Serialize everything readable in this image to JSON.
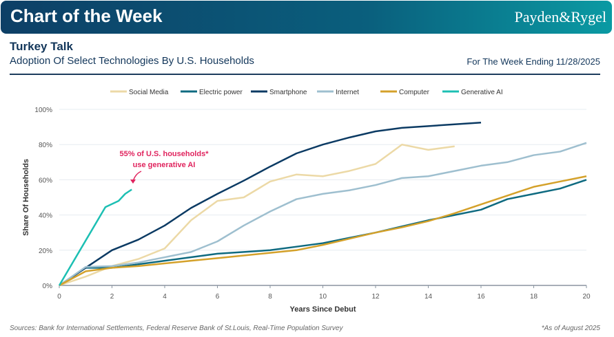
{
  "header": {
    "banner_title": "Chart of the Week",
    "logo": "Payden&Rygel",
    "title": "Turkey Talk",
    "subtitle": "Adoption Of Select Technologies By U.S. Households",
    "week": "For The Week Ending 11/28/2025"
  },
  "footer": {
    "sources": "Sources: Bank for International Settlements, Federal Reserve Bank of St.Louis, Real-Time Population Survey",
    "note": "*As of August 2025"
  },
  "chart_data": {
    "type": "line",
    "title": "",
    "xlabel": "Years Since Debut",
    "ylabel": "Share Of Households",
    "xlim": [
      0,
      20
    ],
    "ylim": [
      0,
      100
    ],
    "xticks": [
      0,
      2,
      4,
      6,
      8,
      10,
      12,
      14,
      16,
      18,
      20
    ],
    "yticks": [
      "0%",
      "20%",
      "40%",
      "60%",
      "80%",
      "100%"
    ],
    "grid": "horizontal",
    "legend": "top",
    "annotation": {
      "line1": "55% of U.S. households*",
      "line2": "use generative AI",
      "color": "#e0245e"
    },
    "series": [
      {
        "name": "Social Media",
        "color": "#ecd9a6",
        "x": [
          0,
          1,
          2,
          3,
          4,
          5,
          6,
          7,
          8,
          9,
          10,
          11,
          12,
          13,
          14,
          15
        ],
        "y": [
          0,
          5,
          11,
          15,
          21,
          37,
          48,
          50,
          59,
          63,
          62,
          65,
          69,
          80,
          77,
          79
        ]
      },
      {
        "name": "Electric power",
        "color": "#0e6a80",
        "x": [
          0,
          1,
          2,
          3,
          4,
          5,
          6,
          7,
          8,
          9,
          10,
          11,
          12,
          13,
          14,
          15,
          16,
          17,
          18,
          19,
          20
        ],
        "y": [
          0,
          10,
          10,
          12,
          14,
          16,
          18,
          19,
          20,
          22,
          24,
          27,
          30,
          33.5,
          37,
          40,
          43,
          49,
          52,
          55,
          60
        ]
      },
      {
        "name": "Smartphone",
        "color": "#0b3a63",
        "x": [
          0,
          1,
          2,
          3,
          4,
          5,
          6,
          7,
          8,
          9,
          10,
          11,
          12,
          13,
          14,
          15,
          16
        ],
        "y": [
          0,
          10,
          20,
          26,
          34,
          44,
          52,
          59.5,
          67.5,
          75,
          80,
          84,
          87.5,
          89.5,
          90.5,
          91.5,
          92.5
        ]
      },
      {
        "name": "Internet",
        "color": "#9ebfcf",
        "x": [
          0,
          1,
          2,
          3,
          4,
          5,
          6,
          7,
          8,
          9,
          10,
          11,
          12,
          13,
          14,
          15,
          16,
          17,
          18,
          19,
          20
        ],
        "y": [
          0,
          10.5,
          11,
          13,
          16,
          19,
          25,
          34,
          42,
          49,
          52,
          54,
          57,
          61,
          62,
          65,
          68,
          70,
          74,
          76,
          81
        ]
      },
      {
        "name": "Computer",
        "color": "#d4a12a",
        "x": [
          0,
          1,
          2,
          3,
          4,
          5,
          6,
          7,
          8,
          9,
          10,
          11,
          12,
          13,
          14,
          15,
          16,
          17,
          18,
          19,
          20
        ],
        "y": [
          0,
          8,
          10,
          11,
          12.5,
          14,
          15.5,
          17,
          18.5,
          20,
          23,
          26.5,
          30,
          33,
          36.5,
          41,
          46,
          51,
          56,
          59,
          62
        ]
      },
      {
        "name": "Generative AI",
        "color": "#1cbfb3",
        "x": [
          0,
          1.75,
          2.25,
          2.5,
          2.75
        ],
        "y": [
          0,
          44.5,
          48,
          52,
          54.5
        ]
      }
    ]
  }
}
